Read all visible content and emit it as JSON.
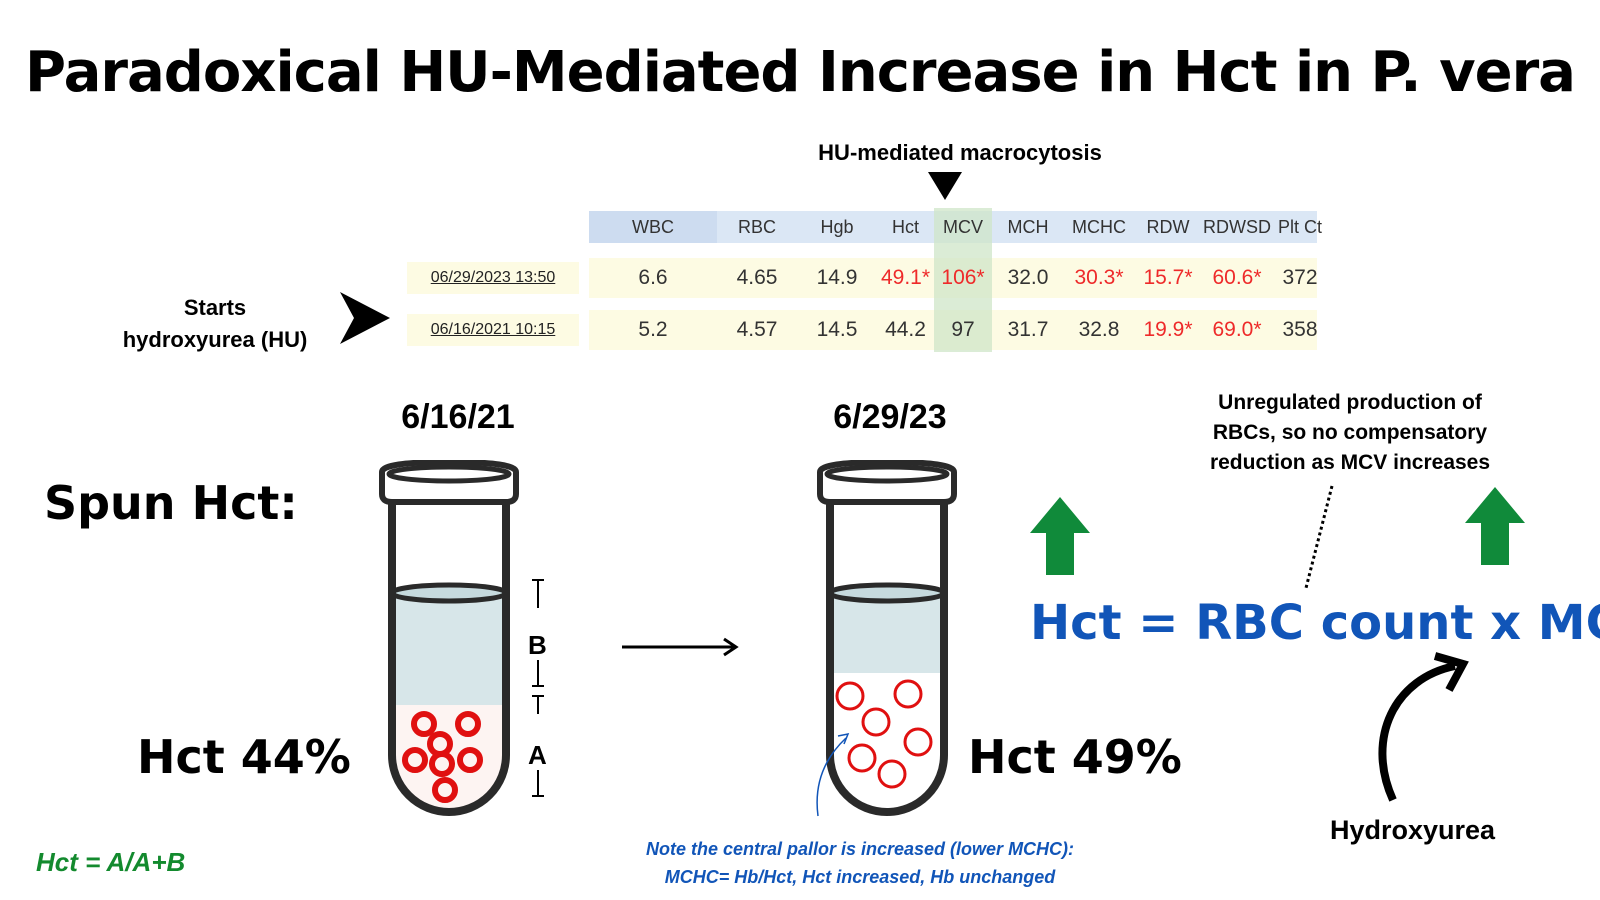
{
  "title": "Paradoxical HU-Mediated Increase in Hct in P. vera",
  "macrocytosis_label": "HU-mediated macrocytosis",
  "starts_label": {
    "line1": "Starts",
    "line2": "hydroxyurea (HU)"
  },
  "lab_table": {
    "headers": [
      "WBC",
      "RBC",
      "Hgb",
      "Hct",
      "MCV",
      "MCH",
      "MCHC",
      "RDW",
      "RDWSD",
      "Plt Ct"
    ],
    "rows": [
      {
        "date": "06/29/2023 13:50",
        "values": [
          "6.6",
          "4.65",
          "14.9",
          "49.1*",
          "106*",
          "32.0",
          "30.3*",
          "15.7*",
          "60.6*",
          "372"
        ]
      },
      {
        "date": "06/16/2021 10:15",
        "values": [
          "5.2",
          "4.57",
          "14.5",
          "44.2",
          "97",
          "31.7",
          "32.8",
          "19.9*",
          "69.0*",
          "358"
        ]
      }
    ]
  },
  "dates": {
    "before": "6/16/21",
    "after": "6/29/23"
  },
  "spun_label": "Spun Hct:",
  "hct_before": "Hct 44%",
  "hct_after": "Hct 49%",
  "tube_labels": {
    "b": "B",
    "a": "A"
  },
  "formula": "Hct = RBC count x MCV",
  "unregulated_note": {
    "line1": "Unregulated production of",
    "line2": "RBCs, so no compensatory",
    "line3": "reduction as MCV increases"
  },
  "hydroxyurea_label": "Hydroxyurea",
  "hct_definition": "Hct = A/A+B",
  "pallor_note": {
    "line1": "Note the central pallor is increased (lower MCHC):",
    "line2": "MCHC= Hb/Hct, Hct increased, Hb unchanged"
  },
  "colors": {
    "formula_blue": "#1155b8",
    "arrow_green": "#108a3a",
    "flag_red": "#ee2a2a",
    "definition_green": "#138a2e",
    "rbc_red": "#e01010"
  }
}
